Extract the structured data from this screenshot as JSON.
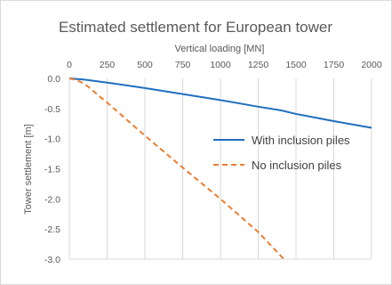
{
  "chart_data": {
    "type": "line",
    "title": "Estimated settlement for European tower",
    "xlabel": "Vertical loading [MN]",
    "ylabel": "Tower settlement [m]",
    "xlim": [
      0,
      2000
    ],
    "ylim": [
      -3.0,
      0.0
    ],
    "x_axis_position": "top",
    "x_ticks": [
      "0",
      "250",
      "500",
      "750",
      "1000",
      "1250",
      "1500",
      "1750",
      "2000"
    ],
    "y_ticks": [
      "0.0",
      "-0.5",
      "-1.0",
      "-1.5",
      "-2.0",
      "-2.5",
      "-3.0"
    ],
    "grid": "vertical",
    "legend_position": "right",
    "series": [
      {
        "name": "With inclusion piles",
        "color": "#1f6fbf",
        "dash": "solid",
        "x": [
          0,
          100,
          250,
          500,
          750,
          1000,
          1250,
          1400,
          1500,
          1750,
          2000
        ],
        "y": [
          0.0,
          -0.02,
          -0.07,
          -0.16,
          -0.26,
          -0.36,
          -0.47,
          -0.53,
          -0.59,
          -0.71,
          -0.82
        ]
      },
      {
        "name": "No inclusion piles",
        "color": "#ed7d31",
        "dash": "dashed",
        "x": [
          0,
          50,
          100,
          150,
          200,
          250,
          500,
          750,
          1000,
          1250,
          1420
        ],
        "y": [
          0.0,
          -0.03,
          -0.09,
          -0.19,
          -0.3,
          -0.4,
          -0.95,
          -1.48,
          -2.0,
          -2.55,
          -3.0
        ]
      }
    ]
  }
}
